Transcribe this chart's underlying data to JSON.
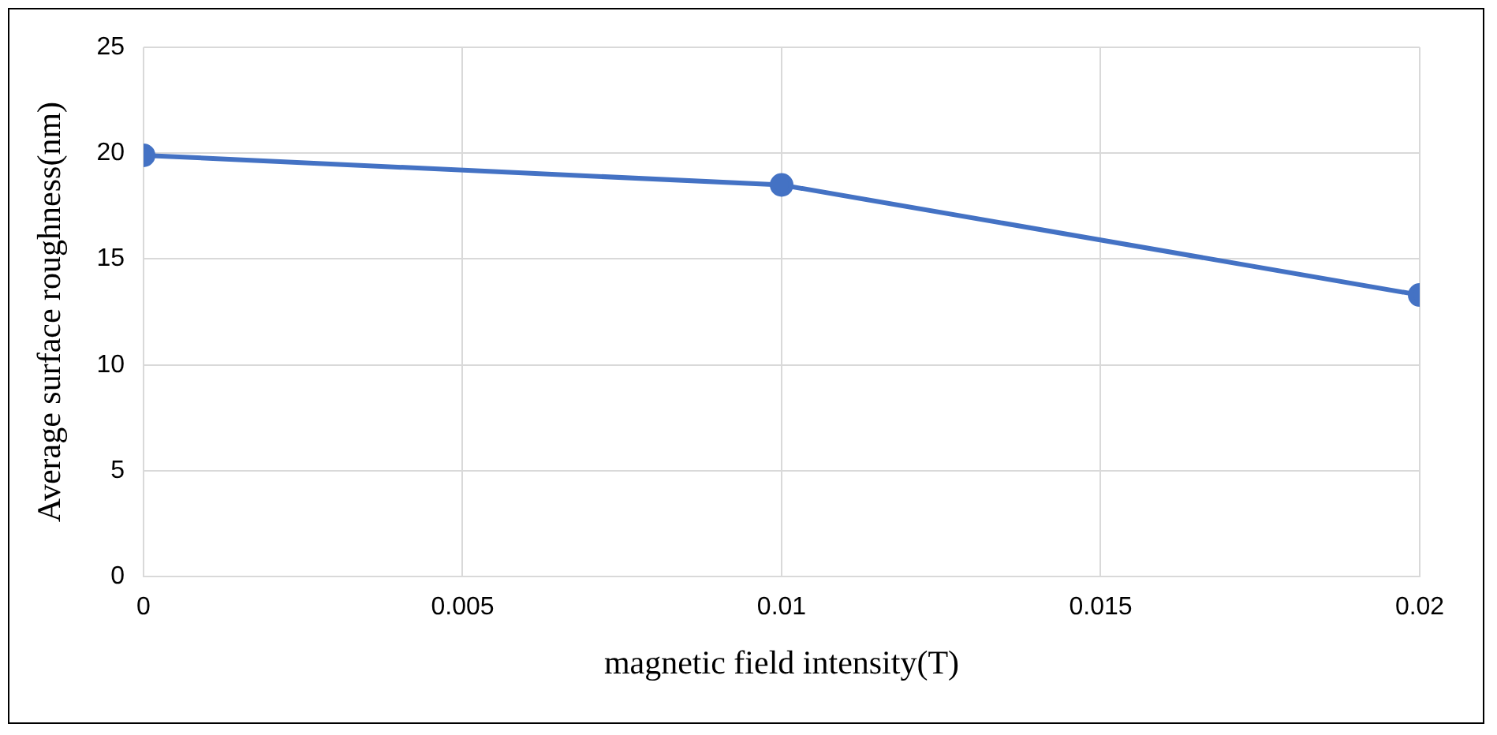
{
  "chart_data": {
    "type": "line",
    "xlabel": "magnetic field intensity(T)",
    "ylabel": "Average surface roughness(nm)",
    "x": [
      0,
      0.01,
      0.02
    ],
    "series": [
      {
        "color": "#4472c4",
        "values": [
          19.9,
          18.5,
          13.3
        ]
      }
    ],
    "xlim": [
      0,
      0.02
    ],
    "xticks": [
      0,
      0.005,
      0.01,
      0.015,
      0.02
    ],
    "ylim": [
      0,
      25
    ],
    "yticks": [
      0,
      5,
      10,
      15,
      20,
      25
    ],
    "grid": true,
    "legend": false,
    "marker": "circle",
    "line_style": "solid"
  }
}
